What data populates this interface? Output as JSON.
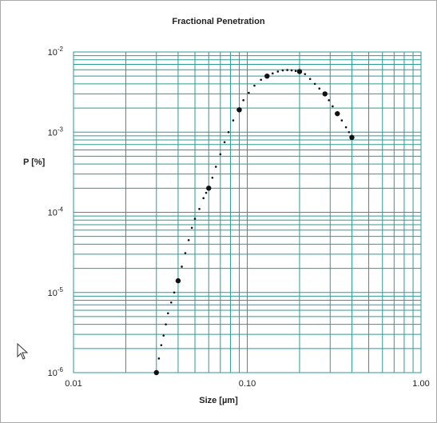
{
  "chart_data": {
    "type": "scatter",
    "title": "Fractional Penetration",
    "xlabel": "Size [µm]",
    "ylabel": "P [%]",
    "x_scale": "log",
    "y_scale": "log",
    "xlim": [
      0.01,
      1.0
    ],
    "ylim": [
      1e-06,
      0.01
    ],
    "x_tick_labels": [
      "0.01",
      "0.10",
      "1.00"
    ],
    "y_tick_labels": [
      {
        "base": "10",
        "exp": "-6"
      },
      {
        "base": "10",
        "exp": "-5"
      },
      {
        "base": "10",
        "exp": "-4"
      },
      {
        "base": "10",
        "exp": "-3"
      },
      {
        "base": "10",
        "exp": "-2"
      }
    ],
    "grid": true,
    "grid_color": "#2e9a94",
    "curve_color": "#111111",
    "series": [
      {
        "style": "markers",
        "points": [
          [
            0.03,
            1e-06
          ],
          [
            0.04,
            1.4e-05
          ],
          [
            0.06,
            0.0002
          ],
          [
            0.09,
            0.0019
          ],
          [
            0.13,
            0.005
          ],
          [
            0.2,
            0.0057
          ],
          [
            0.28,
            0.003
          ],
          [
            0.33,
            0.0017
          ],
          [
            0.4,
            0.00086
          ]
        ]
      },
      {
        "style": "dotted",
        "points": [
          [
            0.03,
            1e-06
          ],
          [
            0.031,
            1.5e-06
          ],
          [
            0.032,
            2.2e-06
          ],
          [
            0.033,
            2.9e-06
          ],
          [
            0.034,
            4e-06
          ],
          [
            0.035,
            5.5e-06
          ],
          [
            0.0365,
            7.5e-06
          ],
          [
            0.038,
            1e-05
          ],
          [
            0.04,
            1.4e-05
          ],
          [
            0.042,
            2.1e-05
          ],
          [
            0.044,
            3.1e-05
          ],
          [
            0.046,
            4.5e-05
          ],
          [
            0.048,
            6.4e-05
          ],
          [
            0.05,
            8.3e-05
          ],
          [
            0.053,
            0.00011
          ],
          [
            0.056,
            0.00015
          ],
          [
            0.058,
            0.000175
          ],
          [
            0.06,
            0.0002
          ],
          [
            0.063,
            0.00027
          ],
          [
            0.066,
            0.00037
          ],
          [
            0.07,
            0.00053
          ],
          [
            0.074,
            0.00075
          ],
          [
            0.078,
            0.001
          ],
          [
            0.083,
            0.0014
          ],
          [
            0.088,
            0.0019
          ],
          [
            0.095,
            0.0025
          ],
          [
            0.102,
            0.0031
          ],
          [
            0.11,
            0.0038
          ],
          [
            0.12,
            0.0045
          ],
          [
            0.13,
            0.005
          ],
          [
            0.14,
            0.0054
          ],
          [
            0.15,
            0.0057
          ],
          [
            0.16,
            0.0059
          ],
          [
            0.17,
            0.00595
          ],
          [
            0.18,
            0.0059
          ],
          [
            0.19,
            0.0058
          ],
          [
            0.2,
            0.0057
          ],
          [
            0.215,
            0.0053
          ],
          [
            0.23,
            0.0046
          ],
          [
            0.245,
            0.004
          ],
          [
            0.26,
            0.0035
          ],
          [
            0.28,
            0.003
          ],
          [
            0.295,
            0.0025
          ],
          [
            0.31,
            0.0021
          ],
          [
            0.33,
            0.0017
          ],
          [
            0.35,
            0.0014
          ],
          [
            0.37,
            0.00115
          ],
          [
            0.385,
            0.001
          ],
          [
            0.4,
            0.00086
          ]
        ]
      }
    ]
  }
}
